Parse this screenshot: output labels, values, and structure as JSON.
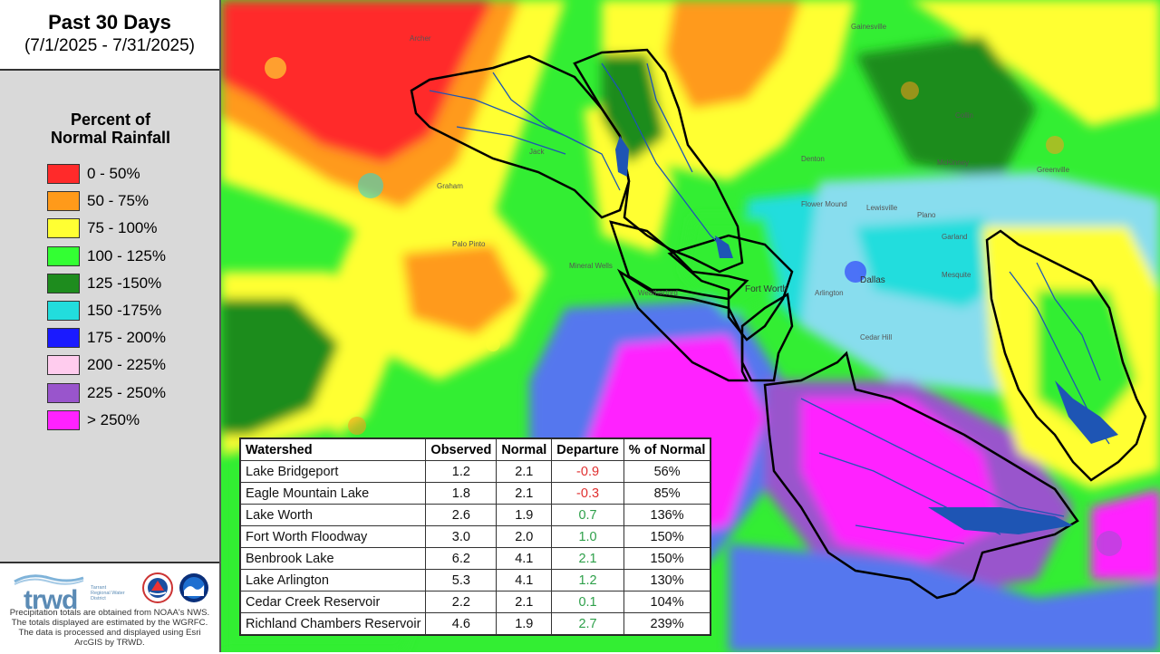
{
  "title": {
    "main": "Past 30 Days",
    "sub": "(7/1/2025 - 7/31/2025)"
  },
  "legend": {
    "title_line1": "Percent of",
    "title_line2": "Normal Rainfall",
    "items": [
      {
        "label": "0 - 50%",
        "color": "#ff2a2a"
      },
      {
        "label": "50 - 75%",
        "color": "#ff9a1a"
      },
      {
        "label": "75 - 100%",
        "color": "#ffff33"
      },
      {
        "label": "100 - 125%",
        "color": "#33ff33"
      },
      {
        "label": "125 -150%",
        "color": "#1e8c1e"
      },
      {
        "label": "150 -175%",
        "color": "#22dddd"
      },
      {
        "label": "175 - 200%",
        "color": "#1a1aff"
      },
      {
        "label": "200 - 225%",
        "color": "#ffccee"
      },
      {
        "label": "225 - 250%",
        "color": "#9955cc"
      },
      {
        "label": "> 250%",
        "color": "#ff22ff"
      }
    ]
  },
  "footer": {
    "logo_text": "trwd",
    "logo_subtext": "Tarrant Regional Water District",
    "disclaimer": "Precipitation totals are obtained from NOAA's NWS. The totals displayed are estimated by the WGRFC. The data is processed and displayed using Esri ArcGIS by TRWD."
  },
  "map_labels": {
    "cities": [
      "Gainesville",
      "Denton",
      "McKinney",
      "Fort Worth",
      "Arlington",
      "Dallas",
      "Mineral Wells",
      "Graham",
      "Cedar Hill",
      "Plano",
      "Lewisville",
      "Flower Mound",
      "Collin",
      "Greenville",
      "Mesquite",
      "Garland",
      "Weatherford",
      "Jack",
      "Archer",
      "Palo Pinto"
    ]
  },
  "table": {
    "headers": [
      "Watershed",
      "Observed",
      "Normal",
      "Departure",
      "% of Normal"
    ],
    "rows": [
      {
        "watershed": "Lake Bridgeport",
        "observed": "1.2",
        "normal": "2.1",
        "departure": "-0.9",
        "pct": "56%",
        "sign": "neg"
      },
      {
        "watershed": "Eagle Mountain Lake",
        "observed": "1.8",
        "normal": "2.1",
        "departure": "-0.3",
        "pct": "85%",
        "sign": "neg"
      },
      {
        "watershed": "Lake Worth",
        "observed": "2.6",
        "normal": "1.9",
        "departure": "0.7",
        "pct": "136%",
        "sign": "pos"
      },
      {
        "watershed": "Fort Worth Floodway",
        "observed": "3.0",
        "normal": "2.0",
        "departure": "1.0",
        "pct": "150%",
        "sign": "pos"
      },
      {
        "watershed": "Benbrook Lake",
        "observed": "6.2",
        "normal": "4.1",
        "departure": "2.1",
        "pct": "150%",
        "sign": "pos"
      },
      {
        "watershed": "Lake Arlington",
        "observed": "5.3",
        "normal": "4.1",
        "departure": "1.2",
        "pct": "130%",
        "sign": "pos"
      },
      {
        "watershed": "Cedar Creek Reservoir",
        "observed": "2.2",
        "normal": "2.1",
        "departure": "0.1",
        "pct": "104%",
        "sign": "pos"
      },
      {
        "watershed": "Richland Chambers Reservoir",
        "observed": "4.6",
        "normal": "1.9",
        "departure": "2.7",
        "pct": "239%",
        "sign": "pos"
      }
    ]
  }
}
